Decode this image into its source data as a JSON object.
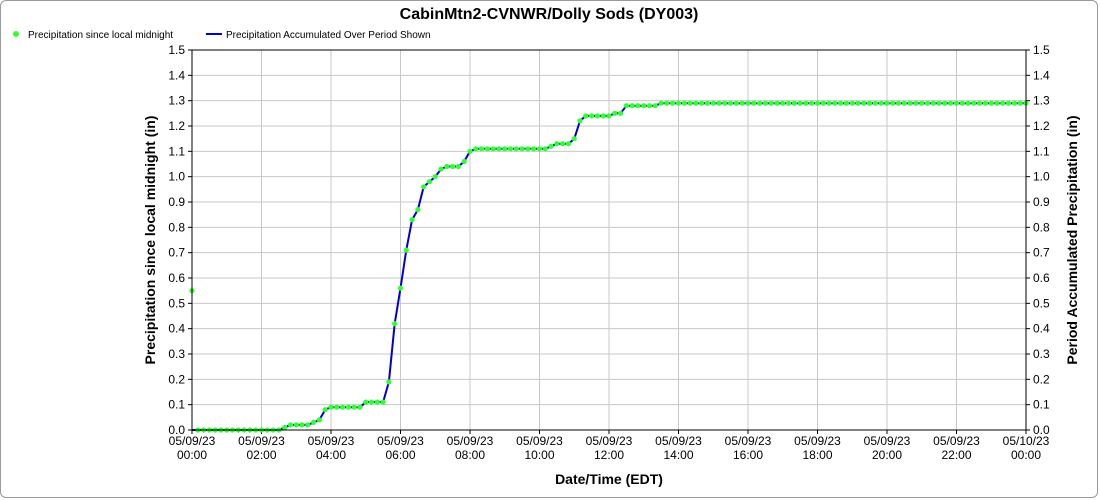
{
  "chart_data": {
    "type": "line",
    "title": "CabinMtn2-CVNWR/Dolly Sods (DY003)",
    "xlabel": "Date/Time (EDT)",
    "ylabel": "Precipitation since local midnight (in)",
    "ylabel_right": "Period Accumulated Precipitation (in)",
    "ylim": [
      0.0,
      1.5
    ],
    "y_ticks": [
      "0.0",
      "0.1",
      "0.2",
      "0.3",
      "0.4",
      "0.5",
      "0.6",
      "0.7",
      "0.8",
      "0.9",
      "1.0",
      "1.1",
      "1.2",
      "1.3",
      "1.4",
      "1.5"
    ],
    "x_ticks": [
      {
        "date": "05/09/23",
        "time": "00:00"
      },
      {
        "date": "05/09/23",
        "time": "02:00"
      },
      {
        "date": "05/09/23",
        "time": "04:00"
      },
      {
        "date": "05/09/23",
        "time": "06:00"
      },
      {
        "date": "05/09/23",
        "time": "08:00"
      },
      {
        "date": "05/09/23",
        "time": "10:00"
      },
      {
        "date": "05/09/23",
        "time": "12:00"
      },
      {
        "date": "05/09/23",
        "time": "14:00"
      },
      {
        "date": "05/09/23",
        "time": "16:00"
      },
      {
        "date": "05/09/23",
        "time": "18:00"
      },
      {
        "date": "05/09/23",
        "time": "20:00"
      },
      {
        "date": "05/09/23",
        "time": "22:00"
      },
      {
        "date": "05/10/23",
        "time": "00:00"
      }
    ],
    "x_range": [
      "05/09/23 00:00",
      "05/10/23 00:00"
    ],
    "grid": true,
    "legend_position": "top-left",
    "series": [
      {
        "name": "Precipitation since local midnight",
        "style": "points",
        "color": "#33ff33",
        "points": [
          [
            "05/09/23 00:00",
            0.55
          ],
          [
            "05/09/23 00:10",
            0.0
          ],
          [
            "05/09/23 00:20",
            0.0
          ],
          [
            "05/09/23 00:30",
            0.0
          ],
          [
            "05/09/23 00:40",
            0.0
          ],
          [
            "05/09/23 00:50",
            0.0
          ],
          [
            "05/09/23 01:00",
            0.0
          ],
          [
            "05/09/23 01:10",
            0.0
          ],
          [
            "05/09/23 01:20",
            0.0
          ],
          [
            "05/09/23 01:30",
            0.0
          ],
          [
            "05/09/23 01:40",
            0.0
          ],
          [
            "05/09/23 01:50",
            0.0
          ],
          [
            "05/09/23 02:00",
            0.0
          ],
          [
            "05/09/23 02:10",
            0.0
          ],
          [
            "05/09/23 02:20",
            0.0
          ],
          [
            "05/09/23 02:30",
            0.0
          ],
          [
            "05/09/23 02:40",
            0.01
          ],
          [
            "05/09/23 02:50",
            0.02
          ],
          [
            "05/09/23 03:00",
            0.02
          ],
          [
            "05/09/23 03:10",
            0.02
          ],
          [
            "05/09/23 03:20",
            0.02
          ],
          [
            "05/09/23 03:30",
            0.03
          ],
          [
            "05/09/23 03:40",
            0.04
          ],
          [
            "05/09/23 03:50",
            0.08
          ],
          [
            "05/09/23 04:00",
            0.09
          ],
          [
            "05/09/23 04:10",
            0.09
          ],
          [
            "05/09/23 04:20",
            0.09
          ],
          [
            "05/09/23 04:30",
            0.09
          ],
          [
            "05/09/23 04:40",
            0.09
          ],
          [
            "05/09/23 04:50",
            0.09
          ],
          [
            "05/09/23 05:00",
            0.11
          ],
          [
            "05/09/23 05:10",
            0.11
          ],
          [
            "05/09/23 05:20",
            0.11
          ],
          [
            "05/09/23 05:30",
            0.11
          ],
          [
            "05/09/23 05:40",
            0.19
          ],
          [
            "05/09/23 05:50",
            0.42
          ],
          [
            "05/09/23 06:00",
            0.56
          ],
          [
            "05/09/23 06:10",
            0.71
          ],
          [
            "05/09/23 06:20",
            0.83
          ],
          [
            "05/09/23 06:30",
            0.87
          ],
          [
            "05/09/23 06:40",
            0.96
          ],
          [
            "05/09/23 06:50",
            0.98
          ],
          [
            "05/09/23 07:00",
            1.0
          ],
          [
            "05/09/23 07:10",
            1.03
          ],
          [
            "05/09/23 07:20",
            1.04
          ],
          [
            "05/09/23 07:30",
            1.04
          ],
          [
            "05/09/23 07:40",
            1.04
          ],
          [
            "05/09/23 07:50",
            1.06
          ],
          [
            "05/09/23 08:00",
            1.1
          ],
          [
            "05/09/23 08:10",
            1.11
          ],
          [
            "05/09/23 08:20",
            1.11
          ],
          [
            "05/09/23 08:30",
            1.11
          ],
          [
            "05/09/23 08:40",
            1.11
          ],
          [
            "05/09/23 08:50",
            1.11
          ],
          [
            "05/09/23 09:00",
            1.11
          ],
          [
            "05/09/23 09:10",
            1.11
          ],
          [
            "05/09/23 09:20",
            1.11
          ],
          [
            "05/09/23 09:30",
            1.11
          ],
          [
            "05/09/23 09:40",
            1.11
          ],
          [
            "05/09/23 09:50",
            1.11
          ],
          [
            "05/09/23 10:00",
            1.11
          ],
          [
            "05/09/23 10:10",
            1.11
          ],
          [
            "05/09/23 10:20",
            1.12
          ],
          [
            "05/09/23 10:30",
            1.13
          ],
          [
            "05/09/23 10:40",
            1.13
          ],
          [
            "05/09/23 10:50",
            1.13
          ],
          [
            "05/09/23 11:00",
            1.15
          ],
          [
            "05/09/23 11:10",
            1.22
          ],
          [
            "05/09/23 11:20",
            1.24
          ],
          [
            "05/09/23 11:30",
            1.24
          ],
          [
            "05/09/23 11:40",
            1.24
          ],
          [
            "05/09/23 11:50",
            1.24
          ],
          [
            "05/09/23 12:00",
            1.24
          ],
          [
            "05/09/23 12:10",
            1.25
          ],
          [
            "05/09/23 12:20",
            1.25
          ],
          [
            "05/09/23 12:30",
            1.28
          ],
          [
            "05/09/23 12:40",
            1.28
          ],
          [
            "05/09/23 12:50",
            1.28
          ],
          [
            "05/09/23 13:00",
            1.28
          ],
          [
            "05/09/23 13:10",
            1.28
          ],
          [
            "05/09/23 13:20",
            1.28
          ],
          [
            "05/09/23 13:30",
            1.29
          ],
          [
            "05/09/23 13:40",
            1.29
          ],
          [
            "05/09/23 13:50",
            1.29
          ],
          [
            "05/09/23 14:00",
            1.29
          ],
          [
            "05/09/23 14:10",
            1.29
          ],
          [
            "05/09/23 14:20",
            1.29
          ],
          [
            "05/09/23 14:30",
            1.29
          ],
          [
            "05/09/23 14:40",
            1.29
          ],
          [
            "05/09/23 14:50",
            1.29
          ],
          [
            "05/09/23 15:00",
            1.29
          ],
          [
            "05/09/23 15:10",
            1.29
          ],
          [
            "05/09/23 15:20",
            1.29
          ],
          [
            "05/09/23 15:30",
            1.29
          ],
          [
            "05/09/23 15:40",
            1.29
          ],
          [
            "05/09/23 15:50",
            1.29
          ],
          [
            "05/09/23 16:00",
            1.29
          ],
          [
            "05/09/23 16:10",
            1.29
          ],
          [
            "05/09/23 16:20",
            1.29
          ],
          [
            "05/09/23 16:30",
            1.29
          ],
          [
            "05/09/23 16:40",
            1.29
          ],
          [
            "05/09/23 16:50",
            1.29
          ],
          [
            "05/09/23 17:00",
            1.29
          ],
          [
            "05/09/23 17:10",
            1.29
          ],
          [
            "05/09/23 17:20",
            1.29
          ],
          [
            "05/09/23 17:30",
            1.29
          ],
          [
            "05/09/23 17:40",
            1.29
          ],
          [
            "05/09/23 17:50",
            1.29
          ],
          [
            "05/09/23 18:00",
            1.29
          ],
          [
            "05/09/23 18:10",
            1.29
          ],
          [
            "05/09/23 18:20",
            1.29
          ],
          [
            "05/09/23 18:30",
            1.29
          ],
          [
            "05/09/23 18:40",
            1.29
          ],
          [
            "05/09/23 18:50",
            1.29
          ],
          [
            "05/09/23 19:00",
            1.29
          ],
          [
            "05/09/23 19:10",
            1.29
          ],
          [
            "05/09/23 19:20",
            1.29
          ],
          [
            "05/09/23 19:30",
            1.29
          ],
          [
            "05/09/23 19:40",
            1.29
          ],
          [
            "05/09/23 19:50",
            1.29
          ],
          [
            "05/09/23 20:00",
            1.29
          ],
          [
            "05/09/23 20:10",
            1.29
          ],
          [
            "05/09/23 20:20",
            1.29
          ],
          [
            "05/09/23 20:30",
            1.29
          ],
          [
            "05/09/23 20:40",
            1.29
          ],
          [
            "05/09/23 20:50",
            1.29
          ],
          [
            "05/09/23 21:00",
            1.29
          ],
          [
            "05/09/23 21:10",
            1.29
          ],
          [
            "05/09/23 21:20",
            1.29
          ],
          [
            "05/09/23 21:30",
            1.29
          ],
          [
            "05/09/23 21:40",
            1.29
          ],
          [
            "05/09/23 21:50",
            1.29
          ],
          [
            "05/09/23 22:00",
            1.29
          ],
          [
            "05/09/23 22:10",
            1.29
          ],
          [
            "05/09/23 22:20",
            1.29
          ],
          [
            "05/09/23 22:30",
            1.29
          ],
          [
            "05/09/23 22:40",
            1.29
          ],
          [
            "05/09/23 22:50",
            1.29
          ],
          [
            "05/09/23 23:00",
            1.29
          ],
          [
            "05/09/23 23:10",
            1.29
          ],
          [
            "05/09/23 23:20",
            1.29
          ],
          [
            "05/09/23 23:30",
            1.29
          ],
          [
            "05/09/23 23:40",
            1.29
          ],
          [
            "05/09/23 23:50",
            1.29
          ],
          [
            "05/10/23 00:00",
            1.29
          ]
        ]
      },
      {
        "name": "Precipitation Accumulated Over Period Shown",
        "style": "line",
        "color": "#0000cc",
        "points": [
          [
            "05/09/23 00:00",
            0.0
          ],
          [
            "05/09/23 02:30",
            0.0
          ],
          [
            "05/09/23 02:40",
            0.01
          ],
          [
            "05/09/23 02:50",
            0.02
          ],
          [
            "05/09/23 03:20",
            0.02
          ],
          [
            "05/09/23 03:30",
            0.03
          ],
          [
            "05/09/23 03:40",
            0.04
          ],
          [
            "05/09/23 03:50",
            0.08
          ],
          [
            "05/09/23 04:00",
            0.09
          ],
          [
            "05/09/23 04:50",
            0.09
          ],
          [
            "05/09/23 05:00",
            0.11
          ],
          [
            "05/09/23 05:30",
            0.11
          ],
          [
            "05/09/23 05:40",
            0.19
          ],
          [
            "05/09/23 05:50",
            0.42
          ],
          [
            "05/09/23 06:00",
            0.56
          ],
          [
            "05/09/23 06:10",
            0.71
          ],
          [
            "05/09/23 06:20",
            0.83
          ],
          [
            "05/09/23 06:30",
            0.87
          ],
          [
            "05/09/23 06:40",
            0.96
          ],
          [
            "05/09/23 06:50",
            0.98
          ],
          [
            "05/09/23 07:00",
            1.0
          ],
          [
            "05/09/23 07:10",
            1.03
          ],
          [
            "05/09/23 07:20",
            1.04
          ],
          [
            "05/09/23 07:40",
            1.04
          ],
          [
            "05/09/23 07:50",
            1.06
          ],
          [
            "05/09/23 08:00",
            1.1
          ],
          [
            "05/09/23 08:10",
            1.11
          ],
          [
            "05/09/23 10:10",
            1.11
          ],
          [
            "05/09/23 10:20",
            1.12
          ],
          [
            "05/09/23 10:30",
            1.13
          ],
          [
            "05/09/23 10:50",
            1.13
          ],
          [
            "05/09/23 11:00",
            1.15
          ],
          [
            "05/09/23 11:10",
            1.22
          ],
          [
            "05/09/23 11:20",
            1.24
          ],
          [
            "05/09/23 12:00",
            1.24
          ],
          [
            "05/09/23 12:10",
            1.25
          ],
          [
            "05/09/23 12:20",
            1.25
          ],
          [
            "05/09/23 12:30",
            1.28
          ],
          [
            "05/09/23 13:20",
            1.28
          ],
          [
            "05/09/23 13:30",
            1.29
          ],
          [
            "05/10/23 00:00",
            1.29
          ]
        ]
      }
    ]
  }
}
